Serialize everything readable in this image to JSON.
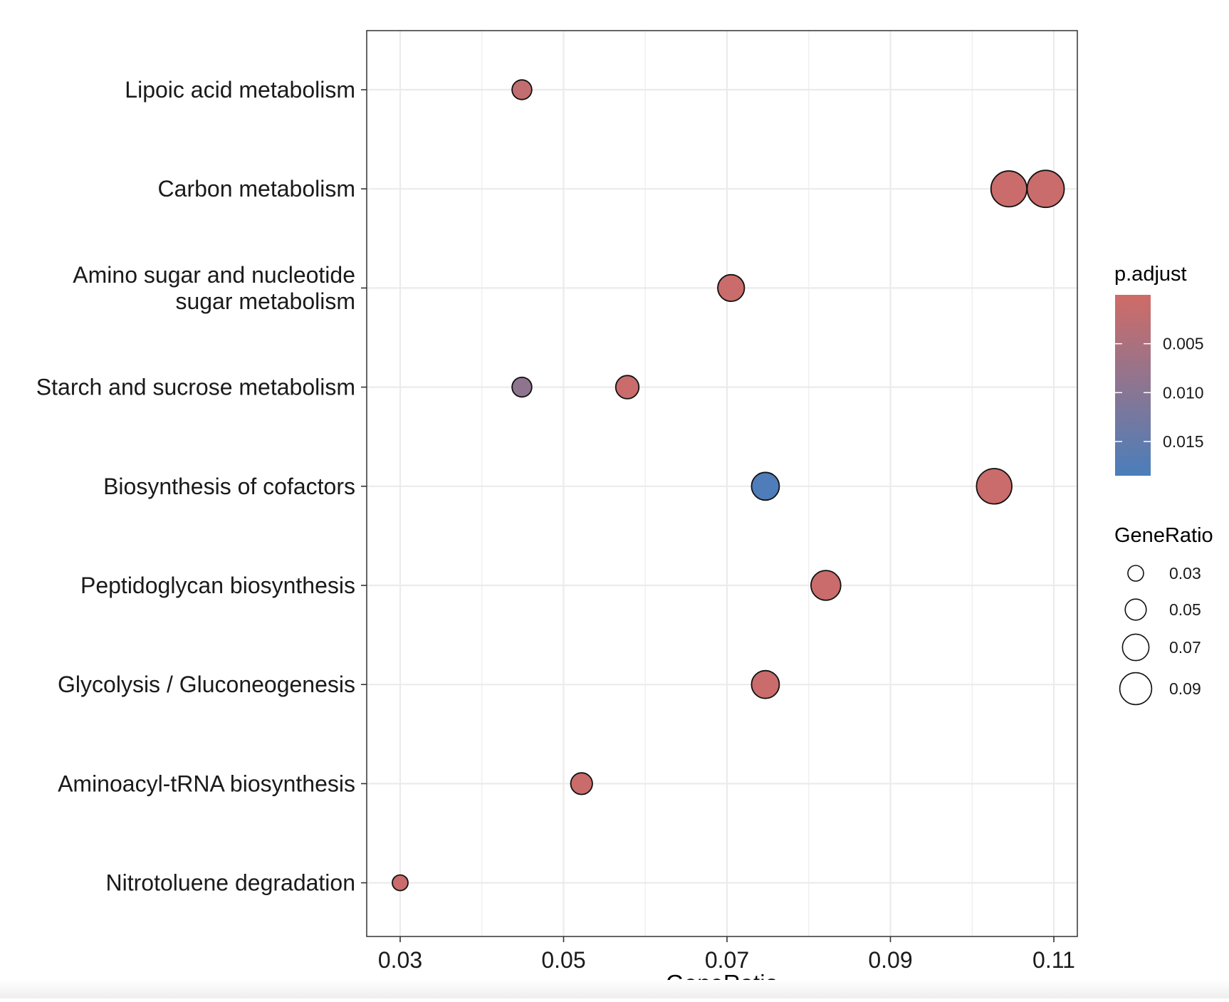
{
  "chart_data": {
    "type": "scatter",
    "xlabel": "GeneRatio",
    "xlim": [
      0.026,
      0.1115
    ],
    "x_ticks": [
      "0.03",
      "0.05",
      "0.07",
      "0.09",
      "0.11"
    ],
    "x_tick_values": [
      0.03,
      0.05,
      0.07,
      0.09,
      0.11
    ],
    "categories": [
      "Lipoic acid metabolism",
      "Carbon metabolism",
      "Amino sugar and nucleotide\nsugar metabolism",
      "Starch and sucrose metabolism",
      "Biosynthesis of cofactors",
      "Peptidoglycan biosynthesis",
      "Glycolysis / Gluconeogenesis",
      "Aminoacyl-tRNA biosynthesis",
      "Nitrotoluene degradation"
    ],
    "points": [
      {
        "category": "Lipoic acid metabolism",
        "x": 0.0449,
        "p_adjust": 0.002
      },
      {
        "category": "Carbon metabolism",
        "x": 0.1045,
        "p_adjust": 0.001
      },
      {
        "category": "Carbon metabolism",
        "x": 0.109,
        "p_adjust": 0.001
      },
      {
        "category": "Amino sugar and nucleotide\nsugar metabolism",
        "x": 0.0705,
        "p_adjust": 0.001
      },
      {
        "category": "Starch and sucrose metabolism",
        "x": 0.0449,
        "p_adjust": 0.009
      },
      {
        "category": "Starch and sucrose metabolism",
        "x": 0.0578,
        "p_adjust": 0.001
      },
      {
        "category": "Biosynthesis of cofactors",
        "x": 0.0747,
        "p_adjust": 0.018
      },
      {
        "category": "Biosynthesis of cofactors",
        "x": 0.1027,
        "p_adjust": 0.001
      },
      {
        "category": "Peptidoglycan biosynthesis",
        "x": 0.0821,
        "p_adjust": 0.001
      },
      {
        "category": "Glycolysis / Gluconeogenesis",
        "x": 0.0747,
        "p_adjust": 0.001
      },
      {
        "category": "Aminoacyl-tRNA biosynthesis",
        "x": 0.0522,
        "p_adjust": 0.001
      },
      {
        "category": "Nitrotoluene degradation",
        "x": 0.03,
        "p_adjust": 0.001
      }
    ],
    "size_by": "GeneRatio",
    "color_by": "p.adjust",
    "grid": true,
    "legend_position": "right",
    "legends": {
      "color": {
        "title": "p.adjust",
        "ticks": [
          "0.005",
          "0.010",
          "0.015"
        ],
        "tick_values": [
          0.005,
          0.01,
          0.015
        ],
        "range": [
          0.0,
          0.0185
        ],
        "low_color": "#D06B66",
        "high_color": "#4A7EBB"
      },
      "size": {
        "title": "GeneRatio",
        "ticks": [
          "0.03",
          "0.05",
          "0.07",
          "0.09"
        ],
        "tick_values": [
          0.03,
          0.05,
          0.07,
          0.09
        ]
      }
    }
  }
}
